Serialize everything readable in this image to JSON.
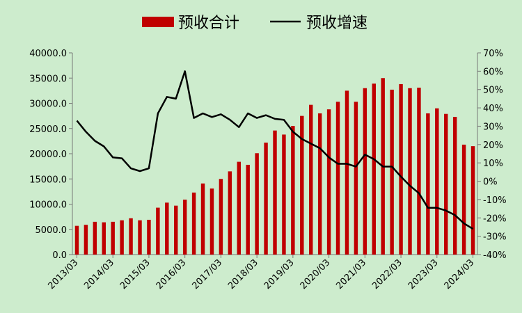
{
  "chart_data": {
    "type": "bar",
    "legend": [
      {
        "label": "预收合计",
        "type": "bar",
        "color": "#c00000"
      },
      {
        "label": "预收增速",
        "type": "line",
        "color": "#000000"
      }
    ],
    "x_ticks": [
      "2013/03",
      "2014/03",
      "2015/03",
      "2016/03",
      "2017/03",
      "2018/03",
      "2019/03",
      "2020/03",
      "2021/03",
      "2022/03",
      "2023/03",
      "2024/03"
    ],
    "y_left_ticks": [
      "40000.0",
      "35000.0",
      "30000.0",
      "25000.0",
      "20000.0",
      "15000.0",
      "10000.0",
      "5000.0",
      "0.0"
    ],
    "y_right_ticks": [
      "70%",
      "60%",
      "50%",
      "40%",
      "30%",
      "20%",
      "10%",
      "0%",
      "-10%",
      "-20%",
      "-30%",
      "-40%"
    ],
    "ylim_left": [
      0,
      40000
    ],
    "ylim_right": [
      -40,
      70
    ],
    "series": [
      {
        "name": "预收合计",
        "type": "bar",
        "axis": "left",
        "values": [
          5700,
          5900,
          6500,
          6400,
          6500,
          6800,
          7200,
          6800,
          6900,
          9300,
          10300,
          9700,
          10900,
          12300,
          14100,
          13100,
          15000,
          16500,
          18400,
          17800,
          20100,
          22200,
          24600,
          23800,
          25500,
          27500,
          29700,
          28000,
          28800,
          30300,
          32500,
          30300,
          33000,
          33900,
          35000,
          32700,
          33800,
          33000,
          33100,
          28000,
          29000,
          27900,
          27300,
          21800,
          21500
        ]
      },
      {
        "name": "预收增速",
        "type": "line",
        "axis": "right",
        "values": [
          33,
          27,
          22,
          19,
          13,
          12.5,
          7,
          5.5,
          7,
          37,
          46,
          45,
          60,
          34.5,
          37,
          35,
          36.5,
          33.5,
          29.5,
          37,
          34.5,
          36,
          34,
          33.5,
          27,
          23,
          20.5,
          18,
          13,
          9.5,
          9.5,
          8,
          14.5,
          12,
          8,
          8,
          2.5,
          -2.5,
          -6.5,
          -14.5,
          -14.5,
          -16,
          -18.5,
          -23,
          -26
        ]
      }
    ]
  }
}
